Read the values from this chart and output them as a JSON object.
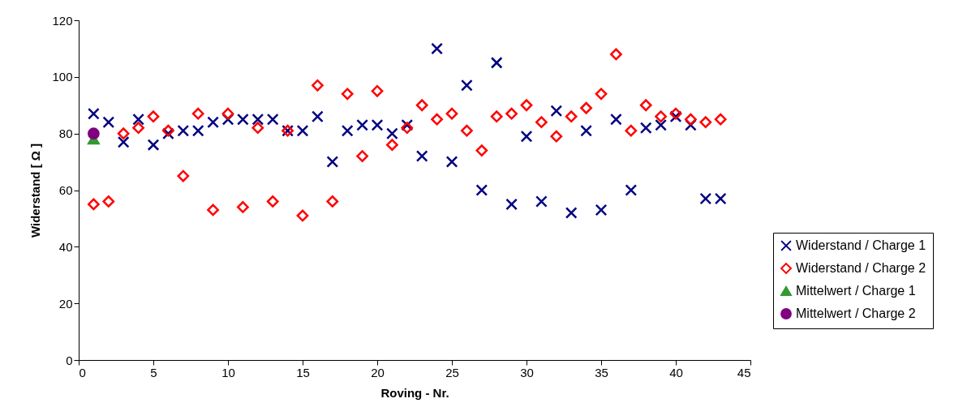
{
  "chart_data": {
    "type": "scatter",
    "xlabel": "Roving - Nr.",
    "ylabel": "Widerstand [ Ω ]",
    "xlim": [
      0,
      45
    ],
    "xticks": [
      0,
      5,
      10,
      15,
      20,
      25,
      30,
      35,
      40,
      45
    ],
    "ylim": [
      0,
      120
    ],
    "yticks": [
      0,
      20,
      40,
      60,
      80,
      100,
      120
    ],
    "grid": false,
    "legend": "bottom right",
    "series": [
      {
        "name": "Widerstand / Charge 1",
        "color": "#000080",
        "marker": "cross",
        "x": [
          1,
          2,
          3,
          4,
          5,
          6,
          7,
          8,
          9,
          10,
          11,
          12,
          13,
          14,
          15,
          16,
          17,
          18,
          19,
          20,
          21,
          22,
          23,
          24,
          25,
          26,
          27,
          28,
          29,
          30,
          31,
          32,
          33,
          34,
          35,
          36,
          37,
          38,
          39,
          40,
          41,
          42,
          43
        ],
        "values": [
          87,
          84,
          77,
          85,
          76,
          80,
          81,
          81,
          84,
          85,
          85,
          85,
          85,
          81,
          81,
          86,
          70,
          81,
          83,
          83,
          80,
          83,
          72,
          110,
          70,
          97,
          60,
          105,
          55,
          79,
          56,
          88,
          52,
          81,
          53,
          85,
          60,
          82,
          83,
          86,
          83,
          57,
          57
        ]
      },
      {
        "name": "Widerstand / Charge 2",
        "color": "#ff0000",
        "marker": "diamond",
        "x": [
          1,
          2,
          3,
          4,
          5,
          6,
          7,
          8,
          9,
          10,
          11,
          12,
          13,
          14,
          15,
          16,
          17,
          18,
          19,
          20,
          21,
          22,
          23,
          24,
          25,
          26,
          27,
          28,
          29,
          30,
          31,
          32,
          33,
          34,
          35,
          36,
          37,
          38,
          39,
          40,
          41,
          42,
          43
        ],
        "values": [
          55,
          56,
          80,
          82,
          86,
          81,
          65,
          87,
          53,
          87,
          54,
          82,
          56,
          81,
          51,
          97,
          56,
          94,
          72,
          95,
          76,
          82,
          90,
          85,
          87,
          81,
          74,
          86,
          87,
          90,
          84,
          79,
          86,
          89,
          94,
          108,
          81,
          90,
          86,
          87,
          85,
          84,
          85
        ]
      },
      {
        "name": "Mittelwert / Charge 1",
        "color": "#339933",
        "marker": "triangle",
        "x": [
          1
        ],
        "values": [
          78
        ]
      },
      {
        "name": "Mittelwert / Charge 2",
        "color": "#800080",
        "marker": "circle",
        "x": [
          1
        ],
        "values": [
          80
        ]
      }
    ]
  }
}
